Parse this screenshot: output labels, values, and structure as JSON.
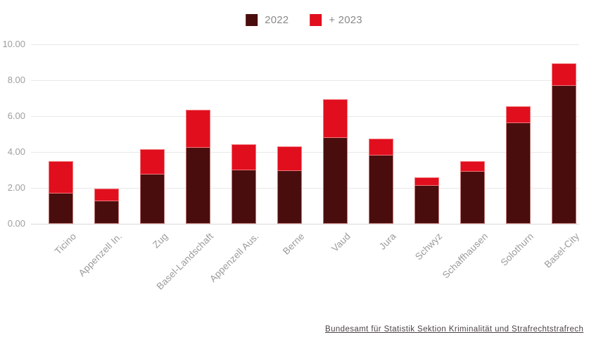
{
  "legend": {
    "items": [
      {
        "label": "2022",
        "color": "#4a0d0d"
      },
      {
        "label": "+ 2023",
        "color": "#e10e1e"
      }
    ]
  },
  "footer": {
    "source_link": "Bundesamt für Statistik Sektion Kriminalität und Strafrechtstrafrech"
  },
  "chart_data": {
    "type": "bar",
    "stacked": true,
    "title": "",
    "xlabel": "",
    "ylabel": "",
    "categories": [
      "Ticino",
      "Appenzell In.",
      "Zug",
      "Basel-Landschaft",
      "Appenzell Aus.",
      "Berne",
      "Vaud",
      "Jura",
      "Schwyz",
      "Schaffhausen",
      "Solothurn",
      "Basel-City"
    ],
    "series": [
      {
        "name": "2022",
        "color": "#4a0d0d",
        "values": [
          1.7,
          1.25,
          2.75,
          4.25,
          3.0,
          2.95,
          4.8,
          3.8,
          2.1,
          2.9,
          5.6,
          7.7
        ]
      },
      {
        "name": "+ 2023",
        "color": "#e10e1e",
        "values": [
          1.8,
          0.7,
          1.4,
          2.1,
          1.45,
          1.35,
          2.15,
          0.95,
          0.5,
          0.6,
          0.95,
          1.25
        ]
      }
    ],
    "stack_totals": [
      3.5,
      1.95,
      4.15,
      6.35,
      4.45,
      4.3,
      6.95,
      4.75,
      2.6,
      3.5,
      6.55,
      8.95
    ],
    "ylim": [
      0,
      10
    ],
    "yticks": [
      "0.00",
      "2.00",
      "4.00",
      "6.00",
      "8.00",
      "10.00"
    ],
    "grid": true,
    "legend_position": "top-center"
  }
}
